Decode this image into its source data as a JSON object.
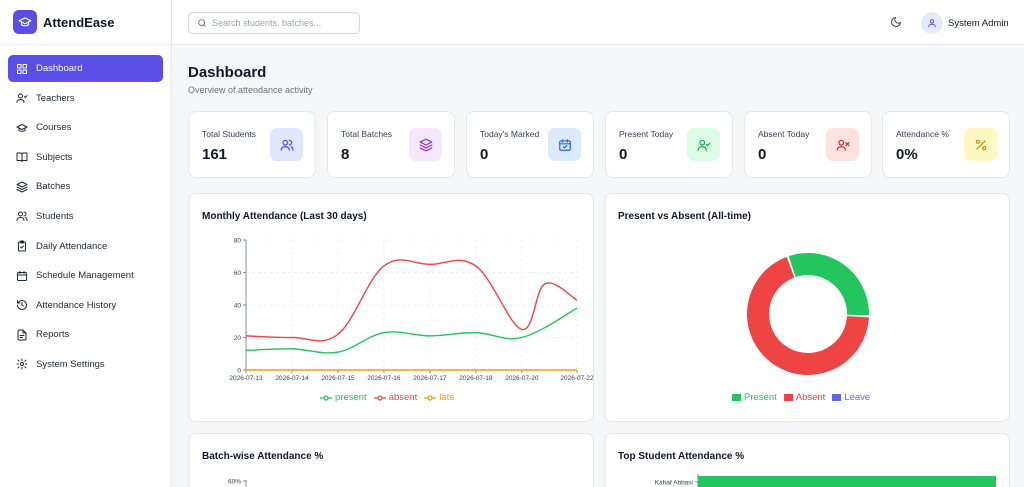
{
  "app": {
    "name": "AttendEase"
  },
  "sidebar": {
    "items": [
      {
        "label": "Dashboard",
        "icon": "dashboard-icon",
        "active": true
      },
      {
        "label": "Teachers",
        "icon": "teacher-icon"
      },
      {
        "label": "Courses",
        "icon": "graduation-cap-icon"
      },
      {
        "label": "Subjects",
        "icon": "book-icon"
      },
      {
        "label": "Batches",
        "icon": "layers-icon"
      },
      {
        "label": "Students",
        "icon": "users-icon"
      },
      {
        "label": "Daily Attendance",
        "icon": "clipboard-check-icon"
      },
      {
        "label": "Schedule Management",
        "icon": "calendar-icon"
      },
      {
        "label": "Attendance History",
        "icon": "history-icon"
      },
      {
        "label": "Reports",
        "icon": "file-icon"
      },
      {
        "label": "System Settings",
        "icon": "gear-icon"
      }
    ]
  },
  "header": {
    "search_placeholder": "Search students, batches...",
    "user_name": "System Admin"
  },
  "page": {
    "title": "Dashboard",
    "subtitle": "Overview of attendance activity"
  },
  "stats": [
    {
      "label": "Total Students",
      "value": "161",
      "icon": "users-icon",
      "bg": "#e0e7ff",
      "fg": "#4f46e5"
    },
    {
      "label": "Total Batches",
      "value": "8",
      "icon": "layers-icon",
      "bg": "#f3e8ff",
      "fg": "#9333ea"
    },
    {
      "label": "Today's Marked",
      "value": "0",
      "icon": "calendar-check-icon",
      "bg": "#dbeafe",
      "fg": "#2563eb"
    },
    {
      "label": "Present Today",
      "value": "0",
      "icon": "user-check-icon",
      "bg": "#dcfce7",
      "fg": "#16a34a"
    },
    {
      "label": "Absent Today",
      "value": "0",
      "icon": "user-x-icon",
      "bg": "#fee2e2",
      "fg": "#dc2626"
    },
    {
      "label": "Attendance %",
      "value": "0%",
      "icon": "percent-icon",
      "bg": "#fef9c3",
      "fg": "#ca8a04"
    }
  ],
  "charts": {
    "monthly_title": "Monthly Attendance (Last 30 days)",
    "pie_title": "Present vs Absent (All-time)",
    "batch_title": "Batch-wise Attendance %",
    "top_title": "Top Student Attendance %"
  },
  "chart_data": [
    {
      "type": "line",
      "title": "Monthly Attendance (Last 30 days)",
      "x": [
        "2026-07-13",
        "2026-07-14",
        "2026-07-15",
        "2026-07-16",
        "2026-07-17",
        "2026-07-18",
        "2026-07-20",
        "2026-07-22"
      ],
      "x_positions": [
        0,
        1,
        2,
        3,
        4,
        5,
        6,
        7.2
      ],
      "ylim": [
        0,
        80
      ],
      "yticks": [
        0,
        20,
        40,
        60,
        80
      ],
      "series": [
        {
          "name": "present",
          "color": "#22c55e",
          "values": [
            12,
            13,
            11,
            23,
            21,
            23,
            20,
            38
          ]
        },
        {
          "name": "absent",
          "color": "#ef4444",
          "values": [
            21,
            20,
            22,
            64,
            65,
            64,
            25,
            43
          ]
        },
        {
          "name": "late",
          "color": "#f59e0b",
          "values": [
            0,
            0,
            0,
            0,
            0,
            0,
            0,
            0
          ]
        }
      ],
      "extra_points": {
        "absent": [
          {
            "x": 6.5,
            "y": 53
          }
        ]
      },
      "legend": "bottom",
      "grid": true
    },
    {
      "type": "pie",
      "title": "Present vs Absent (All-time)",
      "categories": [
        "Present",
        "Absent",
        "Leave"
      ],
      "values": [
        31,
        69,
        0
      ],
      "colors": [
        "#22c55e",
        "#ef4444",
        "#6366f1"
      ],
      "legend": "bottom"
    },
    {
      "type": "bar",
      "title": "Batch-wise Attendance %",
      "yticks_visible": [
        "60%"
      ]
    },
    {
      "type": "bar",
      "title": "Top Student Attendance %",
      "categories": [
        "Kahaf Abbasi"
      ],
      "values": [
        100
      ],
      "colors": [
        "#22c55e"
      ]
    }
  ]
}
